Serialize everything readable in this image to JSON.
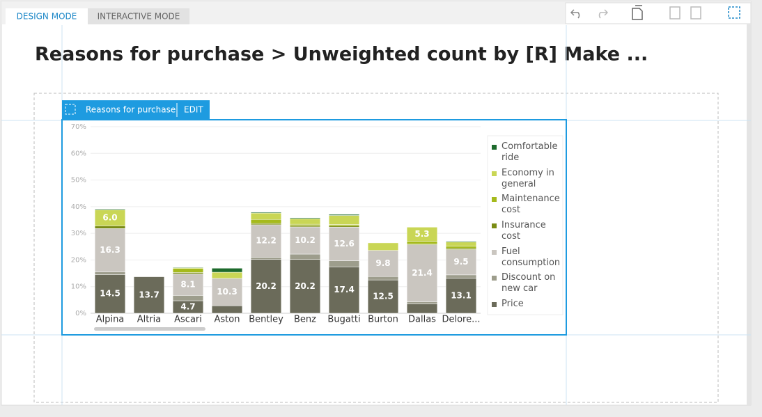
{
  "tabs": [
    "DESIGN MODE",
    "INTERACTIVE MODE"
  ],
  "page_title": "Reasons for purchase > Unweighted count by [R] Make ...",
  "widget": {
    "name": "Reasons for purchase",
    "edit": "EDIT"
  },
  "chart_data": {
    "type": "stacked_bar",
    "categories": [
      "Alpina",
      "Altria",
      "Ascari",
      "Aston",
      "Bentley",
      "Benz",
      "Bugatti",
      "Burton",
      "Dallas",
      "Delore..."
    ],
    "ylim": [
      0,
      70
    ],
    "yticks": [
      {
        "value": 0,
        "label": "0%"
      },
      {
        "value": 10,
        "label": "10%"
      },
      {
        "value": 20,
        "label": "20%"
      },
      {
        "value": 30,
        "label": "30%"
      },
      {
        "value": 40,
        "label": "40%"
      },
      {
        "value": 50,
        "label": "50%"
      },
      {
        "value": 60,
        "label": "60%"
      },
      {
        "value": 70,
        "label": "70%"
      }
    ],
    "grid": true,
    "legend": "right",
    "series": [
      {
        "name": "Price",
        "color": "#6b6b5a",
        "values": [
          14.5,
          13.7,
          4.7,
          2.8,
          20.2,
          20.2,
          17.4,
          12.5,
          3.5,
          13.1
        ],
        "value_labels": [
          "14.5",
          "13.7",
          "4.7",
          null,
          "20.2",
          "20.2",
          "17.4",
          "12.5",
          null,
          "13.1"
        ]
      },
      {
        "name": "Discount on new car",
        "color": "#9d9d8c",
        "values": [
          1.0,
          0,
          2.0,
          0,
          0.8,
          2.0,
          2.3,
          1.3,
          0.8,
          1.3
        ]
      },
      {
        "name": "Fuel consumption",
        "color": "#cac6c0",
        "values": [
          16.3,
          0,
          8.1,
          10.3,
          12.2,
          10.2,
          12.6,
          9.8,
          21.4,
          9.5
        ],
        "value_labels": [
          "16.3",
          null,
          "8.1",
          "10.3",
          "12.2",
          "10.2",
          "12.6",
          "9.8",
          "21.4",
          "9.5"
        ]
      },
      {
        "name": "Insurance cost",
        "color": "#7a8c14",
        "values": [
          1.0,
          0,
          0.5,
          0,
          0.5,
          0.5,
          0.5,
          0,
          0.3,
          0.5
        ]
      },
      {
        "name": "Maintenance cost",
        "color": "#a5ba1c",
        "values": [
          0,
          0,
          1.5,
          0,
          1.5,
          0.5,
          0.5,
          0,
          1.0,
          0.8
        ]
      },
      {
        "name": "Economy in general",
        "color": "#c9d655",
        "values": [
          6.0,
          0,
          0.3,
          2.3,
          2.4,
          2.1,
          3.4,
          2.8,
          5.3,
          1.5
        ],
        "value_labels": [
          "6.0",
          null,
          null,
          null,
          null,
          null,
          null,
          null,
          "5.3",
          null
        ]
      },
      {
        "name": "Comfortable ride",
        "color": "#1d6a2c",
        "values": [
          0.3,
          0,
          0.2,
          1.5,
          0.3,
          0.3,
          0.4,
          0,
          0,
          0.3
        ]
      }
    ]
  }
}
